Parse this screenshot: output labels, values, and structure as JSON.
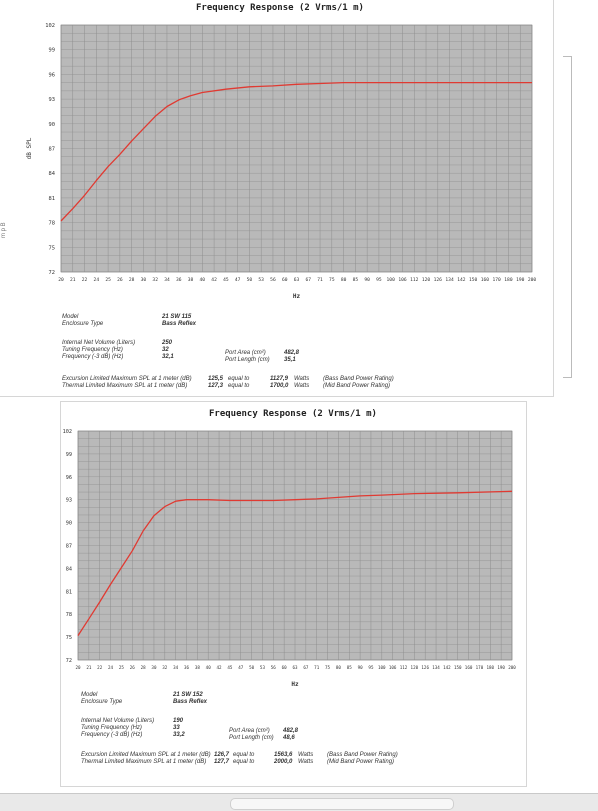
{
  "colors": {
    "plot_bg": "#b9b9b9",
    "grid": "#8e8e8e",
    "curve": "#e03a32"
  },
  "side_text": "m p B",
  "chart_data": [
    {
      "type": "line",
      "title": "Frequency Response (2 Vrms/1 m)",
      "xlabel": "Hz",
      "ylabel": "dB SPL",
      "grid": true,
      "ylim": [
        72,
        102
      ],
      "yticks": [
        72,
        75,
        78,
        81,
        84,
        87,
        90,
        93,
        96,
        99,
        102
      ],
      "xticks": [
        20,
        21,
        22,
        24,
        25,
        26,
        28,
        30,
        32,
        34,
        36,
        38,
        40,
        42,
        45,
        47,
        50,
        53,
        56,
        60,
        63,
        67,
        71,
        75,
        80,
        85,
        90,
        95,
        100,
        106,
        112,
        120,
        126,
        134,
        142,
        150,
        160,
        170,
        180,
        190,
        200
      ],
      "series": [
        {
          "x": [
            20,
            21,
            22,
            24,
            25,
            26,
            28,
            30,
            32,
            34,
            36,
            38,
            40,
            45,
            50,
            56,
            63,
            71,
            80,
            90,
            100,
            120,
            150,
            200
          ],
          "y": [
            78.2,
            79.7,
            81.3,
            83.1,
            84.8,
            86.3,
            87.9,
            89.4,
            90.9,
            92.1,
            92.9,
            93.4,
            93.8,
            94.2,
            94.5,
            94.6,
            94.8,
            94.9,
            95.0,
            95.0,
            95.0,
            95.0,
            95.0,
            95.0
          ]
        }
      ]
    },
    {
      "type": "line",
      "title": "Frequency Response (2 Vrms/1 m)",
      "xlabel": "Hz",
      "ylabel": "dB SPL",
      "grid": true,
      "ylim": [
        72,
        102
      ],
      "yticks": [
        72,
        75,
        78,
        81,
        84,
        87,
        90,
        93,
        96,
        99,
        102
      ],
      "xticks": [
        20,
        21,
        22,
        24,
        25,
        26,
        28,
        30,
        32,
        34,
        36,
        38,
        40,
        42,
        45,
        47,
        50,
        53,
        56,
        60,
        63,
        67,
        71,
        75,
        80,
        85,
        90,
        95,
        100,
        106,
        112,
        120,
        126,
        134,
        142,
        150,
        160,
        170,
        180,
        190,
        200
      ],
      "series": [
        {
          "x": [
            20,
            21,
            22,
            24,
            25,
            26,
            28,
            30,
            32,
            34,
            36,
            38,
            40,
            45,
            50,
            56,
            63,
            71,
            80,
            90,
            100,
            120,
            150,
            200
          ],
          "y": [
            75.2,
            77.4,
            79.6,
            81.9,
            84.1,
            86.3,
            88.9,
            90.9,
            92.1,
            92.8,
            93.0,
            93.0,
            93.0,
            92.9,
            92.9,
            92.9,
            93.0,
            93.1,
            93.3,
            93.5,
            93.6,
            93.8,
            93.9,
            94.1
          ]
        }
      ]
    }
  ],
  "specs": [
    {
      "model_label": "Model",
      "model": "21 SW 115",
      "enclosure_label": "Enclosure Type",
      "enclosure": "Bass Reflex",
      "volume_label": "Internal Net Volume (Liters)",
      "volume": "250",
      "tuning_label": "Tuning Frequency (Hz)",
      "tuning": "32",
      "f3_label": "Frequency (-3 dB) (Hz)",
      "f3": "32,1",
      "port_area_label": "Port Area (cm²)",
      "port_area": "482,8",
      "port_length_label": "Port Length (cm)",
      "port_length": "35,1",
      "excursion_label": "Excursion Limited Maximum SPL at 1 meter (dB)",
      "excursion_spl": "125,5",
      "thermal_label": "Thermal Limited Maximum SPL at 1 meter (dB)",
      "thermal_spl": "127,3",
      "equal_to": "equal to",
      "excursion_watts": "1127,9",
      "thermal_watts": "1700,0",
      "watts_label": "Watts",
      "excursion_note": "(Bass Band Power Rating)",
      "thermal_note": "(Mid Band Power Rating)"
    },
    {
      "model_label": "Model",
      "model": "21 SW 152",
      "enclosure_label": "Enclosure Type",
      "enclosure": "Bass Reflex",
      "volume_label": "Internal Net Volume (Liters)",
      "volume": "190",
      "tuning_label": "Tuning Frequency (Hz)",
      "tuning": "33",
      "f3_label": "Frequency (-3 dB) (Hz)",
      "f3": "33,2",
      "port_area_label": "Port Area (cm²)",
      "port_area": "482,8",
      "port_length_label": "Port Length (cm)",
      "port_length": "48,6",
      "excursion_label": "Excursion Limited Maximum SPL at 1 meter (dB)",
      "excursion_spl": "126,7",
      "thermal_label": "Thermal Limited Maximum SPL at 1 meter (dB)",
      "thermal_spl": "127,7",
      "equal_to": "equal to",
      "excursion_watts": "1563,6",
      "thermal_watts": "2000,0",
      "watts_label": "Watts",
      "excursion_note": "(Bass Band Power Rating)",
      "thermal_note": "(Mid Band Power Rating)"
    }
  ]
}
